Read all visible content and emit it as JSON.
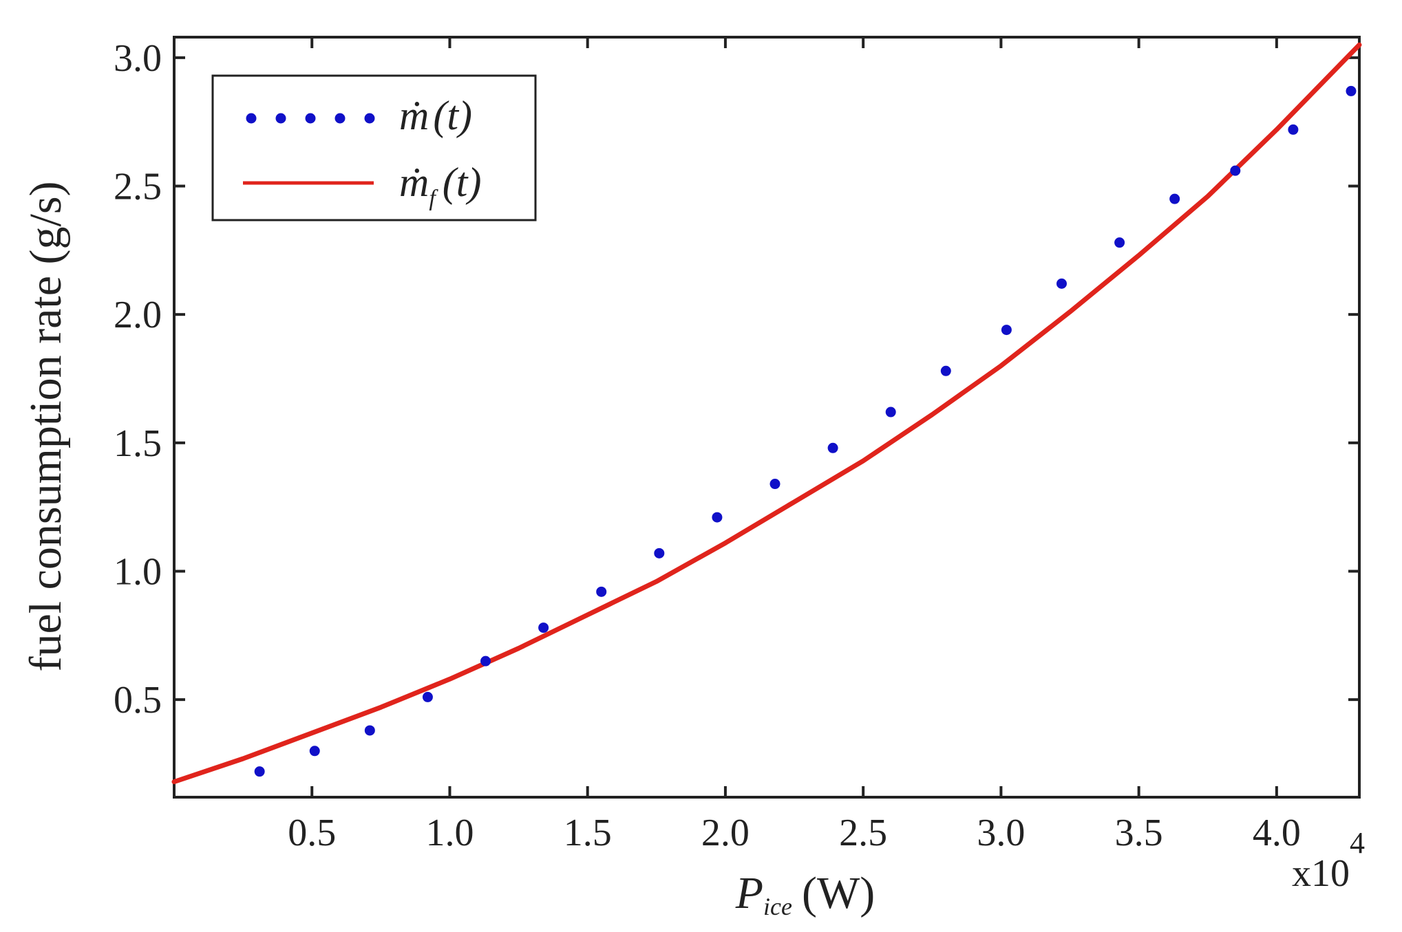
{
  "chart_data": {
    "type": "scatter",
    "title": "",
    "xlabel": "P",
    "xlabel_subscript": "ice",
    "xlabel_unit": "(W)",
    "ylabel": "fuel consumption rate (g/s)",
    "x_multiplier_base": "x10",
    "x_multiplier_exp": "4",
    "xlim": [
      0.0,
      4.3
    ],
    "ylim": [
      0.12,
      3.08
    ],
    "xticks": [
      0.5,
      1.0,
      1.5,
      2.0,
      2.5,
      3.0,
      3.5,
      4.0
    ],
    "xtick_labels": [
      "0.5",
      "1.0",
      "1.5",
      "2.0",
      "2.5",
      "3.0",
      "3.5",
      "4.0"
    ],
    "yticks": [
      0.5,
      1.0,
      1.5,
      2.0,
      2.5,
      3.0
    ],
    "ytick_labels": [
      "0.5",
      "1.0",
      "1.5",
      "2.0",
      "2.5",
      "3.0"
    ],
    "grid": false,
    "legend_position": "top-left",
    "series": [
      {
        "name": "ṁ(t)",
        "legend_main": "ṁ",
        "legend_sub": "",
        "legend_arg": "(t)",
        "style": "dots",
        "color": "#1010c8",
        "x": [
          0.31,
          0.51,
          0.71,
          0.92,
          1.13,
          1.34,
          1.55,
          1.76,
          1.97,
          2.18,
          2.39,
          2.6,
          2.8,
          3.02,
          3.22,
          3.43,
          3.63,
          3.85,
          4.06,
          4.27
        ],
        "y": [
          0.22,
          0.3,
          0.38,
          0.51,
          0.65,
          0.78,
          0.92,
          1.07,
          1.21,
          1.34,
          1.48,
          1.62,
          1.78,
          1.94,
          2.12,
          2.28,
          2.45,
          2.56,
          2.72,
          2.87
        ]
      },
      {
        "name": "ṁ_f(t)",
        "legend_main": "ṁ",
        "legend_sub": "f",
        "legend_arg": "(t)",
        "style": "line",
        "color": "#e0241c",
        "x": [
          0.0,
          0.25,
          0.5,
          0.75,
          1.0,
          1.25,
          1.5,
          1.75,
          2.0,
          2.25,
          2.5,
          2.75,
          3.0,
          3.25,
          3.5,
          3.75,
          4.0,
          4.3
        ],
        "y": [
          0.18,
          0.27,
          0.37,
          0.47,
          0.58,
          0.7,
          0.83,
          0.96,
          1.11,
          1.27,
          1.43,
          1.61,
          1.8,
          2.01,
          2.23,
          2.46,
          2.72,
          3.05
        ]
      }
    ]
  }
}
